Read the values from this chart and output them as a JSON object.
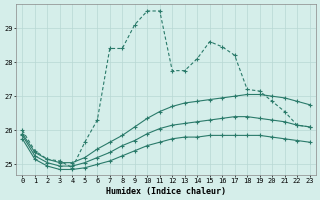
{
  "xlabel": "Humidex (Indice chaleur)",
  "background_color": "#d5eeea",
  "grid_color": "#b8d8d4",
  "line_color": "#2a7a6a",
  "xlim": [
    -0.5,
    23.5
  ],
  "ylim": [
    24.7,
    29.7
  ],
  "yticks": [
    25,
    26,
    27,
    28,
    29
  ],
  "xticks": [
    0,
    1,
    2,
    3,
    4,
    5,
    6,
    7,
    8,
    9,
    10,
    11,
    12,
    13,
    14,
    15,
    16,
    17,
    18,
    19,
    20,
    21,
    22,
    23
  ],
  "line1_x": [
    0,
    1,
    2,
    3,
    4,
    5,
    6,
    7,
    8,
    9,
    10,
    11,
    12,
    13,
    14,
    15,
    16,
    17,
    18,
    19,
    20,
    21,
    22,
    23
  ],
  "line1_y": [
    26.0,
    25.4,
    25.15,
    25.1,
    24.9,
    25.65,
    26.3,
    28.4,
    28.4,
    29.1,
    29.5,
    29.5,
    27.75,
    27.75,
    28.1,
    28.6,
    28.45,
    28.2,
    27.2,
    27.15,
    26.85,
    26.55,
    26.15,
    26.1
  ],
  "line2_x": [
    0,
    1,
    2,
    3,
    4,
    5,
    6,
    7,
    8,
    9,
    10,
    11,
    12,
    13,
    14,
    15,
    16,
    17,
    18,
    19,
    20,
    21,
    22,
    23
  ],
  "line2_y": [
    25.9,
    25.35,
    25.15,
    25.05,
    25.05,
    25.2,
    25.45,
    25.65,
    25.85,
    26.1,
    26.35,
    26.55,
    26.7,
    26.8,
    26.85,
    26.9,
    26.95,
    27.0,
    27.05,
    27.05,
    27.0,
    26.95,
    26.85,
    26.75
  ],
  "line3_x": [
    0,
    1,
    2,
    3,
    4,
    5,
    6,
    7,
    8,
    9,
    10,
    11,
    12,
    13,
    14,
    15,
    16,
    17,
    18,
    19,
    20,
    21,
    22,
    23
  ],
  "line3_y": [
    25.85,
    25.25,
    25.05,
    24.95,
    24.95,
    25.05,
    25.2,
    25.35,
    25.55,
    25.7,
    25.9,
    26.05,
    26.15,
    26.2,
    26.25,
    26.3,
    26.35,
    26.4,
    26.4,
    26.35,
    26.3,
    26.25,
    26.15,
    26.1
  ],
  "line4_x": [
    0,
    1,
    2,
    3,
    4,
    5,
    6,
    7,
    8,
    9,
    10,
    11,
    12,
    13,
    14,
    15,
    16,
    17,
    18,
    19,
    20,
    21,
    22,
    23
  ],
  "line4_y": [
    25.75,
    25.15,
    24.95,
    24.85,
    24.85,
    24.9,
    25.0,
    25.1,
    25.25,
    25.4,
    25.55,
    25.65,
    25.75,
    25.8,
    25.8,
    25.85,
    25.85,
    25.85,
    25.85,
    25.85,
    25.8,
    25.75,
    25.7,
    25.65
  ]
}
